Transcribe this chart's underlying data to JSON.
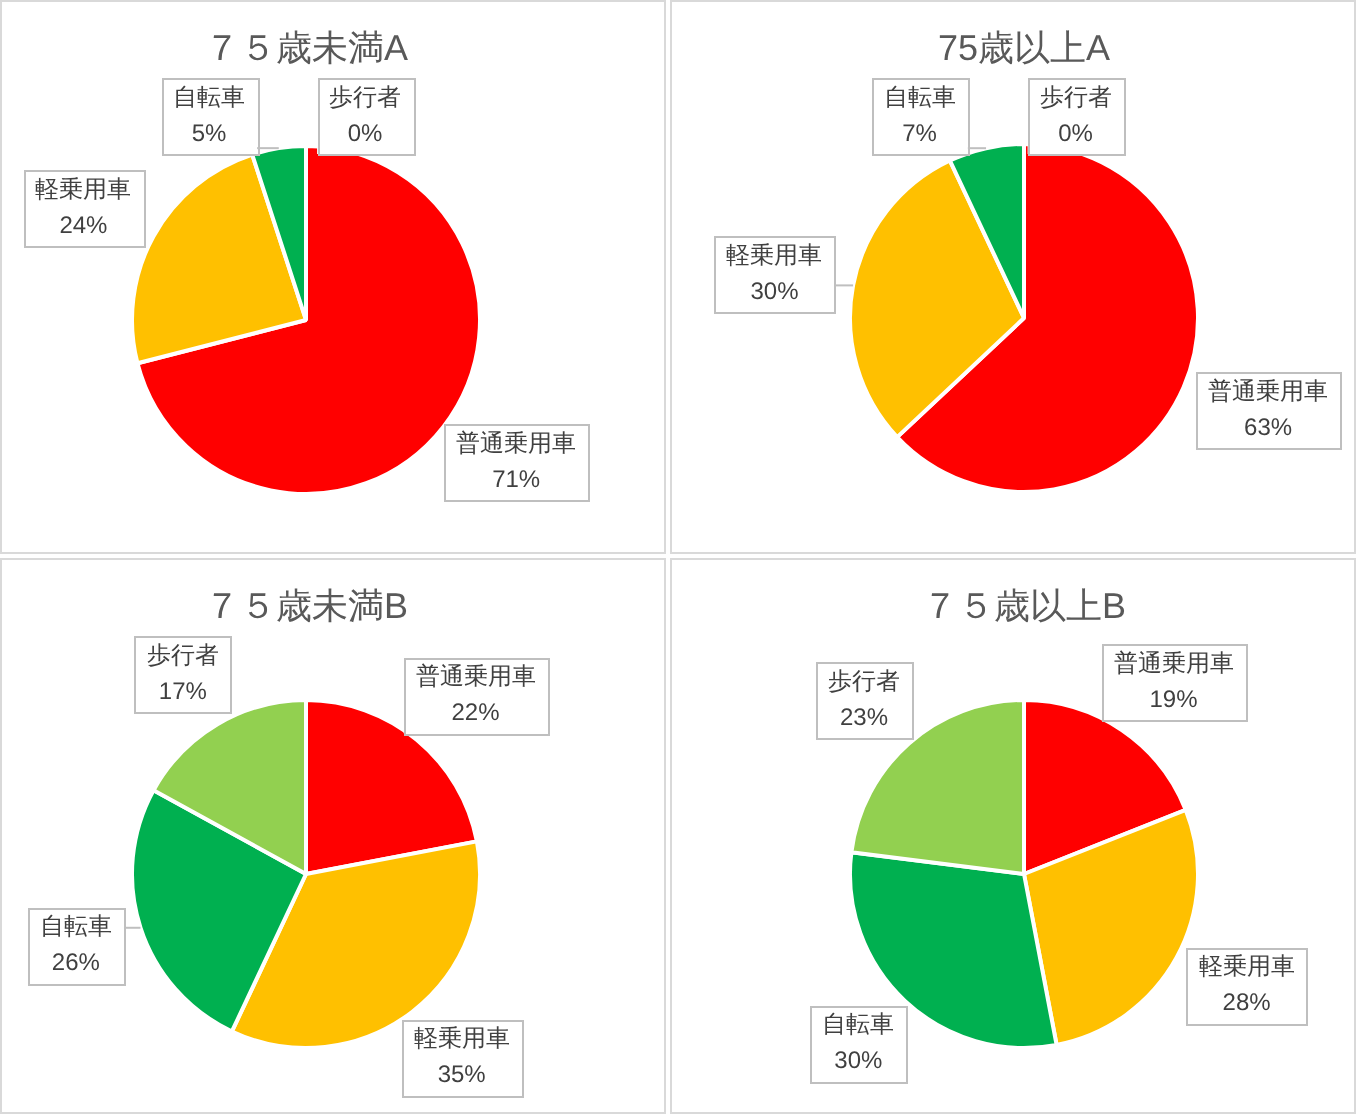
{
  "chart_data": [
    {
      "type": "pie",
      "title": "７５歳未満A",
      "categories": [
        "普通乗用車",
        "軽乗用車",
        "自転車",
        "歩行者"
      ],
      "values": [
        71,
        24,
        5,
        0
      ],
      "colors": [
        "#ff0000",
        "#ffc000",
        "#00b050",
        "#92d050"
      ],
      "value_labels": [
        "71%",
        "24%",
        "5%",
        "0%"
      ],
      "legend": false
    },
    {
      "type": "pie",
      "title": "75歳以上A",
      "categories": [
        "普通乗用車",
        "軽乗用車",
        "自転車",
        "歩行者"
      ],
      "values": [
        63,
        30,
        7,
        0
      ],
      "colors": [
        "#ff0000",
        "#ffc000",
        "#00b050",
        "#92d050"
      ],
      "value_labels": [
        "63%",
        "30%",
        "7%",
        "0%"
      ],
      "legend": false
    },
    {
      "type": "pie",
      "title": "７５歳未満B",
      "categories": [
        "普通乗用車",
        "軽乗用車",
        "自転車",
        "歩行者"
      ],
      "values": [
        22,
        35,
        26,
        17
      ],
      "colors": [
        "#ff0000",
        "#ffc000",
        "#00b050",
        "#92d050"
      ],
      "value_labels": [
        "22%",
        "35%",
        "26%",
        "17%"
      ],
      "legend": false
    },
    {
      "type": "pie",
      "title": "７５歳以上B",
      "categories": [
        "普通乗用車",
        "軽乗用車",
        "自転車",
        "歩行者"
      ],
      "values": [
        19,
        28,
        30,
        23
      ],
      "colors": [
        "#ff0000",
        "#ffc000",
        "#00b050",
        "#92d050"
      ],
      "value_labels": [
        "19%",
        "28%",
        "30%",
        "23%"
      ],
      "legend": false
    }
  ]
}
